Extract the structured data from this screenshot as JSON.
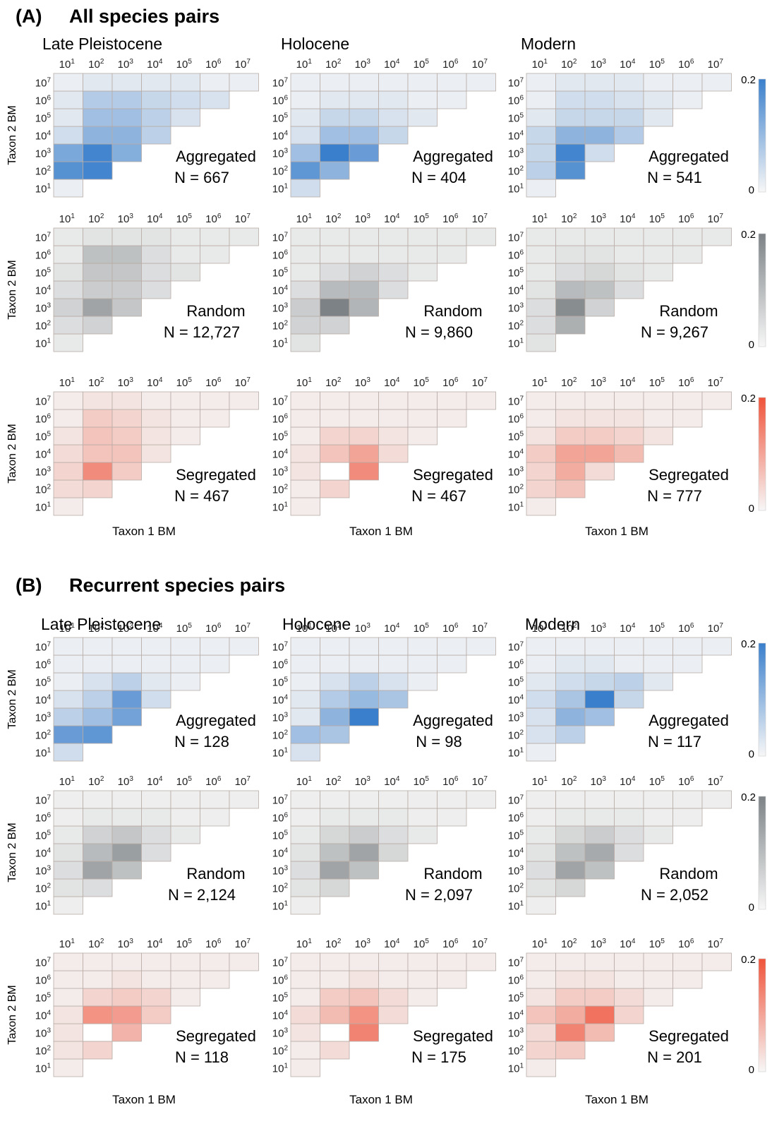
{
  "sections": [
    {
      "letter": "(A)",
      "title": "All species pairs"
    },
    {
      "letter": "(B)",
      "title": "Recurrent species pairs"
    }
  ],
  "periods": [
    "Late Pleistocene",
    "Holocene",
    "Modern"
  ],
  "pattern_labels": [
    "Aggregated",
    "Random",
    "Segregated"
  ],
  "y_axis_label": "Taxon 2 BM",
  "x_axis_label": "Taxon 1 BM",
  "tick_base": "10",
  "tick_exponents": [
    "1",
    "2",
    "3",
    "4",
    "5",
    "6",
    "7"
  ],
  "colorbar": {
    "max_label": "0.2",
    "min_label": "0"
  },
  "colors": {
    "Aggregated": "#3a7fcc",
    "Random": "#7c8285",
    "Segregated": "#f0533a",
    "empty": "#f4f4f4",
    "grid": "#b8aca6"
  },
  "chart_data": [
    {
      "type": "heatmap",
      "section": "(A)",
      "period": "Late Pleistocene",
      "pattern": "Aggregated",
      "n_label": "N = 667",
      "scale": [
        0,
        0.2
      ],
      "rows": [
        [
          0.01
        ],
        [
          0.17,
          0.19
        ],
        [
          0.13,
          0.19,
          0.12
        ],
        [
          0.04,
          0.11,
          0.11,
          0.06
        ],
        [
          0.02,
          0.09,
          0.09,
          0.06,
          0.03
        ],
        [
          0.02,
          0.07,
          0.07,
          0.05,
          0.04,
          0.03
        ],
        [
          0.01,
          0.02,
          0.02,
          0.02,
          0.02,
          0.01,
          0.01
        ]
      ]
    },
    {
      "type": "heatmap",
      "section": "(A)",
      "period": "Holocene",
      "pattern": "Aggregated",
      "n_label": "N = 404",
      "scale": [
        0,
        0.2
      ],
      "rows": [
        [
          0.04
        ],
        [
          0.16,
          0.11
        ],
        [
          0.09,
          0.2,
          0.15
        ],
        [
          0.03,
          0.09,
          0.09,
          0.05
        ],
        [
          0.02,
          0.05,
          0.05,
          0.03,
          0.02
        ],
        [
          0.01,
          0.02,
          0.02,
          0.02,
          0.01,
          0.01
        ],
        [
          0.01,
          0.01,
          0.01,
          0.01,
          0.01,
          0.01,
          0.01
        ]
      ]
    },
    {
      "type": "heatmap",
      "section": "(A)",
      "period": "Modern",
      "pattern": "Aggregated",
      "n_label": "N = 541",
      "scale": [
        0,
        0.2
      ],
      "rows": [
        [
          0.01
        ],
        [
          0.06,
          0.17
        ],
        [
          0.05,
          0.19,
          0.04
        ],
        [
          0.05,
          0.11,
          0.11,
          0.07
        ],
        [
          0.02,
          0.05,
          0.05,
          0.05,
          0.02
        ],
        [
          0.01,
          0.04,
          0.04,
          0.03,
          0.02,
          0.01
        ],
        [
          0.01,
          0.02,
          0.02,
          0.02,
          0.01,
          0.01,
          0.01
        ]
      ]
    },
    {
      "type": "heatmap",
      "section": "(A)",
      "period": "Late Pleistocene",
      "pattern": "Random",
      "n_label": "N = 12,727",
      "scale": [
        0,
        0.2
      ],
      "rows": [
        [
          0.02
        ],
        [
          0.04,
          0.06
        ],
        [
          0.06,
          0.14,
          0.08
        ],
        [
          0.04,
          0.07,
          0.07,
          0.04
        ],
        [
          0.03,
          0.08,
          0.08,
          0.04,
          0.03
        ],
        [
          0.02,
          0.09,
          0.09,
          0.04,
          0.02,
          0.02
        ],
        [
          0.02,
          0.03,
          0.03,
          0.03,
          0.02,
          0.02,
          0.02
        ]
      ]
    },
    {
      "type": "heatmap",
      "section": "(A)",
      "period": "Holocene",
      "pattern": "Random",
      "n_label": "N = 9,860",
      "scale": [
        0,
        0.2
      ],
      "rows": [
        [
          0.03
        ],
        [
          0.06,
          0.06
        ],
        [
          0.07,
          0.2,
          0.11
        ],
        [
          0.04,
          0.1,
          0.1,
          0.04
        ],
        [
          0.02,
          0.04,
          0.06,
          0.04,
          0.02
        ],
        [
          0.02,
          0.02,
          0.02,
          0.02,
          0.02,
          0.02
        ],
        [
          0.02,
          0.02,
          0.02,
          0.02,
          0.02,
          0.02,
          0.02
        ]
      ]
    },
    {
      "type": "heatmap",
      "section": "(A)",
      "period": "Modern",
      "pattern": "Random",
      "n_label": "N = 9,267",
      "scale": [
        0,
        0.2
      ],
      "rows": [
        [
          0.03
        ],
        [
          0.04,
          0.12
        ],
        [
          0.04,
          0.18,
          0.06
        ],
        [
          0.03,
          0.1,
          0.09,
          0.04
        ],
        [
          0.02,
          0.04,
          0.05,
          0.03,
          0.02
        ],
        [
          0.02,
          0.03,
          0.03,
          0.02,
          0.02,
          0.02
        ],
        [
          0.02,
          0.02,
          0.02,
          0.02,
          0.02,
          0.02,
          0.02
        ]
      ]
    },
    {
      "type": "heatmap",
      "section": "(A)",
      "period": "Late Pleistocene",
      "pattern": "Segregated",
      "n_label": "N = 467",
      "scale": [
        0,
        0.2
      ],
      "rows": [
        [
          0.01
        ],
        [
          0.03,
          0.04
        ],
        [
          0.04,
          0.13,
          0.05
        ],
        [
          0.03,
          0.06,
          0.06,
          0.02
        ],
        [
          0.02,
          0.06,
          0.05,
          0.02,
          0.01
        ],
        [
          0.01,
          0.05,
          0.04,
          0.02,
          0.01,
          0.01
        ],
        [
          0.01,
          0.02,
          0.02,
          0.01,
          0.01,
          0.01,
          0.01
        ]
      ]
    },
    {
      "type": "heatmap",
      "section": "(A)",
      "period": "Holocene",
      "pattern": "Segregated",
      "n_label": "N = 467",
      "scale": [
        0,
        0.2
      ],
      "rows": [
        [
          0.01
        ],
        [
          0.01,
          0.04
        ],
        [
          0.02,
          0.0,
          0.13
        ],
        [
          0.02,
          0.06,
          0.1,
          0.03
        ],
        [
          0.01,
          0.04,
          0.04,
          0.02,
          0.01
        ],
        [
          0.01,
          0.01,
          0.01,
          0.01,
          0.01,
          0.01
        ],
        [
          0.01,
          0.01,
          0.01,
          0.01,
          0.01,
          0.01,
          0.01
        ]
      ]
    },
    {
      "type": "heatmap",
      "section": "(A)",
      "period": "Modern",
      "pattern": "Segregated",
      "n_label": "N = 777",
      "scale": [
        0,
        0.2
      ],
      "rows": [
        [
          0.01
        ],
        [
          0.04,
          0.06
        ],
        [
          0.04,
          0.09,
          0.03
        ],
        [
          0.05,
          0.1,
          0.1,
          0.07
        ],
        [
          0.02,
          0.05,
          0.05,
          0.04,
          0.02
        ],
        [
          0.01,
          0.02,
          0.02,
          0.02,
          0.01,
          0.01
        ],
        [
          0.01,
          0.01,
          0.01,
          0.01,
          0.01,
          0.01,
          0.01
        ]
      ]
    },
    {
      "type": "heatmap",
      "section": "(B)",
      "period": "Late Pleistocene",
      "pattern": "Aggregated",
      "n_label": "N = 128",
      "scale": [
        0,
        0.2
      ],
      "rows": [
        [
          0.04
        ],
        [
          0.15,
          0.16
        ],
        [
          0.06,
          0.09,
          0.14
        ],
        [
          0.03,
          0.06,
          0.15,
          0.04
        ],
        [
          0.01,
          0.03,
          0.06,
          0.02,
          0.01
        ],
        [
          0.01,
          0.01,
          0.01,
          0.01,
          0.01,
          0.01
        ],
        [
          0.01,
          0.01,
          0.01,
          0.01,
          0.01,
          0.01,
          0.01
        ]
      ]
    },
    {
      "type": "heatmap",
      "section": "(B)",
      "period": "Holocene",
      "pattern": "Aggregated",
      "n_label": "N = 98",
      "scale": [
        0,
        0.2
      ],
      "rows": [
        [
          0.03
        ],
        [
          0.09,
          0.08
        ],
        [
          0.02,
          0.11,
          0.2
        ],
        [
          0.02,
          0.07,
          0.1,
          0.08
        ],
        [
          0.01,
          0.03,
          0.06,
          0.03,
          0.01
        ],
        [
          0.01,
          0.01,
          0.01,
          0.01,
          0.01,
          0.01
        ],
        [
          0.01,
          0.01,
          0.01,
          0.01,
          0.01,
          0.01,
          0.01
        ]
      ]
    },
    {
      "type": "heatmap",
      "section": "(B)",
      "period": "Modern",
      "pattern": "Aggregated",
      "n_label": "N = 117",
      "scale": [
        0,
        0.2
      ],
      "rows": [
        [
          0.01
        ],
        [
          0.03,
          0.06
        ],
        [
          0.03,
          0.11,
          0.09
        ],
        [
          0.04,
          0.08,
          0.2,
          0.05
        ],
        [
          0.02,
          0.04,
          0.05,
          0.06,
          0.02
        ],
        [
          0.01,
          0.02,
          0.02,
          0.01,
          0.01,
          0.01
        ],
        [
          0.01,
          0.01,
          0.01,
          0.01,
          0.01,
          0.01,
          0.01
        ]
      ]
    },
    {
      "type": "heatmap",
      "section": "(B)",
      "period": "Late Pleistocene",
      "pattern": "Random",
      "n_label": "N = 2,124",
      "scale": [
        0,
        0.2
      ],
      "rows": [
        [
          0.01
        ],
        [
          0.03,
          0.04
        ],
        [
          0.04,
          0.14,
          0.09
        ],
        [
          0.03,
          0.1,
          0.15,
          0.04
        ],
        [
          0.02,
          0.06,
          0.08,
          0.04,
          0.02
        ],
        [
          0.01,
          0.02,
          0.02,
          0.02,
          0.01,
          0.01
        ],
        [
          0.01,
          0.01,
          0.01,
          0.01,
          0.01,
          0.01,
          0.01
        ]
      ]
    },
    {
      "type": "heatmap",
      "section": "(B)",
      "period": "Holocene",
      "pattern": "Random",
      "n_label": "N = 2,097",
      "scale": [
        0,
        0.2
      ],
      "rows": [
        [
          0.01
        ],
        [
          0.03,
          0.05
        ],
        [
          0.04,
          0.14,
          0.09
        ],
        [
          0.03,
          0.09,
          0.14,
          0.05
        ],
        [
          0.02,
          0.05,
          0.07,
          0.04,
          0.02
        ],
        [
          0.01,
          0.02,
          0.02,
          0.02,
          0.01,
          0.01
        ],
        [
          0.01,
          0.01,
          0.01,
          0.01,
          0.01,
          0.01,
          0.01
        ]
      ]
    },
    {
      "type": "heatmap",
      "section": "(B)",
      "period": "Modern",
      "pattern": "Random",
      "n_label": "N = 2,052",
      "scale": [
        0,
        0.2
      ],
      "rows": [
        [
          0.01
        ],
        [
          0.03,
          0.05
        ],
        [
          0.04,
          0.14,
          0.09
        ],
        [
          0.03,
          0.09,
          0.13,
          0.04
        ],
        [
          0.02,
          0.05,
          0.07,
          0.04,
          0.02
        ],
        [
          0.01,
          0.02,
          0.02,
          0.02,
          0.01,
          0.01
        ],
        [
          0.01,
          0.01,
          0.01,
          0.01,
          0.01,
          0.01,
          0.01
        ]
      ]
    },
    {
      "type": "heatmap",
      "section": "(B)",
      "period": "Late Pleistocene",
      "pattern": "Segregated",
      "n_label": "N = 118",
      "scale": [
        0,
        0.2
      ],
      "rows": [
        [
          0.01
        ],
        [
          0.02,
          0.04
        ],
        [
          0.02,
          0.0,
          0.08
        ],
        [
          0.02,
          0.12,
          0.11,
          0.05
        ],
        [
          0.01,
          0.04,
          0.05,
          0.04,
          0.01
        ],
        [
          0.01,
          0.01,
          0.02,
          0.01,
          0.01,
          0.01
        ],
        [
          0.01,
          0.01,
          0.01,
          0.01,
          0.01,
          0.01,
          0.01
        ]
      ]
    },
    {
      "type": "heatmap",
      "section": "(B)",
      "period": "Holocene",
      "pattern": "Segregated",
      "n_label": "N = 175",
      "scale": [
        0,
        0.2
      ],
      "rows": [
        [
          0.01
        ],
        [
          0.01,
          0.03
        ],
        [
          0.02,
          0.0,
          0.14
        ],
        [
          0.03,
          0.07,
          0.12,
          0.03
        ],
        [
          0.01,
          0.05,
          0.06,
          0.03,
          0.01
        ],
        [
          0.01,
          0.01,
          0.02,
          0.01,
          0.01,
          0.01
        ],
        [
          0.01,
          0.01,
          0.01,
          0.01,
          0.01,
          0.01,
          0.01
        ]
      ]
    },
    {
      "type": "heatmap",
      "section": "(B)",
      "period": "Modern",
      "pattern": "Segregated",
      "n_label": "N = 201",
      "scale": [
        0,
        0.2
      ],
      "rows": [
        [
          0.01
        ],
        [
          0.04,
          0.05
        ],
        [
          0.03,
          0.14,
          0.07
        ],
        [
          0.06,
          0.09,
          0.16,
          0.04
        ],
        [
          0.02,
          0.05,
          0.05,
          0.03,
          0.01
        ],
        [
          0.01,
          0.02,
          0.02,
          0.01,
          0.01,
          0.01
        ],
        [
          0.01,
          0.01,
          0.01,
          0.01,
          0.01,
          0.01,
          0.01
        ]
      ]
    }
  ]
}
